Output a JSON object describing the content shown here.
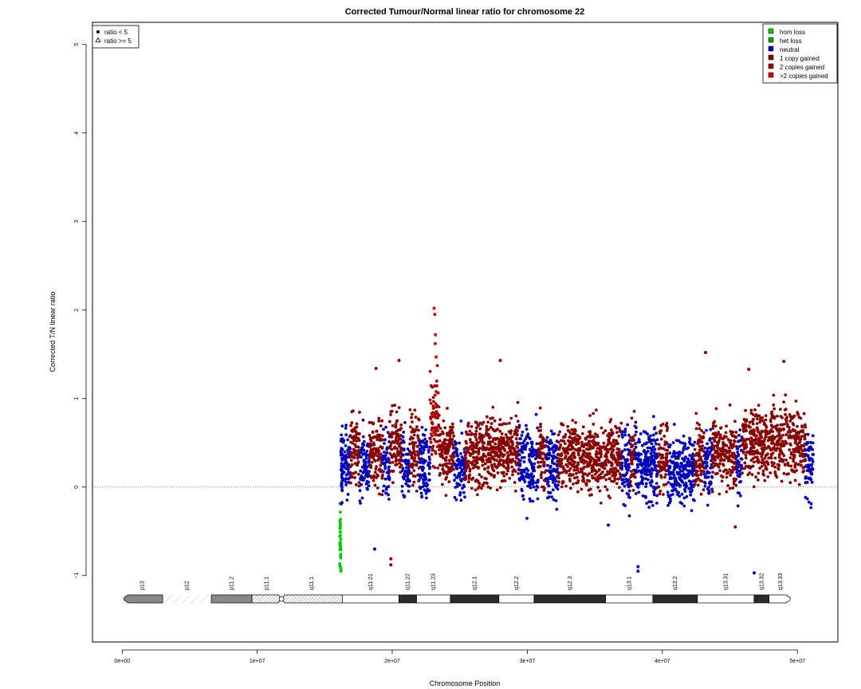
{
  "chart_data": {
    "type": "scatter",
    "title": "Corrected Tumour/Normal linear ratio for chromosome  22",
    "xlabel": "Chromosome Position",
    "ylabel": "Corrected T/N linear ratio",
    "xlim": [
      -2200000,
      53000000
    ],
    "ylim": [
      -1.75,
      5.25
    ],
    "x_ticks": [
      0,
      10000000,
      20000000,
      30000000,
      40000000,
      50000000
    ],
    "x_tick_labels": [
      "0e+00",
      "1e+07",
      "2e+07",
      "3e+07",
      "4e+07",
      "5e+07"
    ],
    "y_ticks": [
      -1,
      0,
      1,
      2,
      3,
      4,
      5
    ],
    "y_tick_labels": [
      "−1",
      "0",
      "1",
      "2",
      "3",
      "4",
      "5"
    ],
    "reference_line": 0,
    "shape_legend": {
      "placement": "top-left",
      "items": [
        {
          "label": "ratio < 5",
          "symbol": "circle"
        },
        {
          "label": "ratio >= 5",
          "symbol": "triangle"
        }
      ]
    },
    "legend": {
      "placement": "top-right",
      "items": [
        {
          "label": "hom loss",
          "color": "#00cc00"
        },
        {
          "label": "het loss",
          "color": "#00aa00"
        },
        {
          "label": "neutral",
          "color": "#0000bb"
        },
        {
          "label": "1 copy gained",
          "color": "#880000"
        },
        {
          "label": "2 copies gained",
          "color": "#aa0000"
        },
        {
          "label": ">2 copies gained",
          "color": "#dd0000"
        }
      ]
    },
    "segments": [
      {
        "start": 16100000,
        "end": 16200000,
        "state": "hom loss",
        "median": -0.6
      },
      {
        "start": 16200000,
        "end": 16300000,
        "state": "neutral",
        "median": 0.25
      },
      {
        "start": 16300000,
        "end": 16900000,
        "state": "neutral",
        "median": 0.25
      },
      {
        "start": 16900000,
        "end": 17600000,
        "state": "1 copy gained",
        "median": 0.45
      },
      {
        "start": 17600000,
        "end": 18300000,
        "state": "neutral",
        "median": 0.25
      },
      {
        "start": 18300000,
        "end": 19300000,
        "state": "1 copy gained",
        "median": 0.4
      },
      {
        "start": 19300000,
        "end": 19800000,
        "state": "neutral",
        "median": 0.25
      },
      {
        "start": 19800000,
        "end": 20700000,
        "state": "1 copy gained",
        "median": 0.45
      },
      {
        "start": 20700000,
        "end": 21300000,
        "state": "neutral",
        "median": 0.25
      },
      {
        "start": 21300000,
        "end": 22000000,
        "state": "1 copy gained",
        "median": 0.4
      },
      {
        "start": 22000000,
        "end": 22800000,
        "state": "neutral",
        "median": 0.25
      },
      {
        "start": 22800000,
        "end": 23500000,
        "state": "2 copies gained",
        "median": 0.6
      },
      {
        "start": 23500000,
        "end": 24600000,
        "state": "1 copy gained",
        "median": 0.4
      },
      {
        "start": 24600000,
        "end": 25400000,
        "state": "neutral",
        "median": 0.25
      },
      {
        "start": 25400000,
        "end": 29400000,
        "state": "1 copy gained",
        "median": 0.4
      },
      {
        "start": 29400000,
        "end": 30800000,
        "state": "neutral",
        "median": 0.25
      },
      {
        "start": 30800000,
        "end": 31400000,
        "state": "1 copy gained",
        "median": 0.35
      },
      {
        "start": 31400000,
        "end": 32300000,
        "state": "neutral",
        "median": 0.25
      },
      {
        "start": 32300000,
        "end": 37000000,
        "state": "1 copy gained",
        "median": 0.35
      },
      {
        "start": 37000000,
        "end": 37600000,
        "state": "neutral",
        "median": 0.25
      },
      {
        "start": 37600000,
        "end": 38000000,
        "state": "1 copy gained",
        "median": 0.35
      },
      {
        "start": 38000000,
        "end": 39700000,
        "state": "neutral",
        "median": 0.25
      },
      {
        "start": 39700000,
        "end": 40400000,
        "state": "1 copy gained",
        "median": 0.35
      },
      {
        "start": 40400000,
        "end": 42400000,
        "state": "neutral",
        "median": 0.2
      },
      {
        "start": 42400000,
        "end": 43100000,
        "state": "1 copy gained",
        "median": 0.35
      },
      {
        "start": 43100000,
        "end": 43700000,
        "state": "neutral",
        "median": 0.25
      },
      {
        "start": 43700000,
        "end": 45500000,
        "state": "1 copy gained",
        "median": 0.4
      },
      {
        "start": 45500000,
        "end": 45900000,
        "state": "neutral",
        "median": 0.25
      },
      {
        "start": 45900000,
        "end": 50600000,
        "state": "1 copy gained",
        "median": 0.5
      },
      {
        "start": 50600000,
        "end": 51200000,
        "state": "neutral",
        "median": 0.25
      }
    ],
    "outliers": [
      {
        "x": 23100000,
        "y": 2.02,
        "state": ">2 copies gained"
      },
      {
        "x": 23150000,
        "y": 1.95,
        "state": ">2 copies gained"
      },
      {
        "x": 23200000,
        "y": 1.72,
        "state": ">2 copies gained"
      },
      {
        "x": 23180000,
        "y": 1.62,
        "state": ">2 copies gained"
      },
      {
        "x": 23250000,
        "y": 1.47,
        "state": ">2 copies gained"
      },
      {
        "x": 43200000,
        "y": 1.52,
        "state": "1 copy gained"
      },
      {
        "x": 28000000,
        "y": 1.43,
        "state": "1 copy gained"
      },
      {
        "x": 49000000,
        "y": 1.42,
        "state": "1 copy gained"
      },
      {
        "x": 18800000,
        "y": 1.34,
        "state": "1 copy gained"
      },
      {
        "x": 20500000,
        "y": 1.43,
        "state": "1 copy gained"
      },
      {
        "x": 46400000,
        "y": 1.33,
        "state": "1 copy gained"
      },
      {
        "x": 19900000,
        "y": -0.88,
        "state": "1 copy gained"
      },
      {
        "x": 19900000,
        "y": -0.81,
        "state": "1 copy gained"
      },
      {
        "x": 38200000,
        "y": -0.9,
        "state": "neutral"
      },
      {
        "x": 38200000,
        "y": -0.95,
        "state": "neutral"
      },
      {
        "x": 46800000,
        "y": -0.97,
        "state": "neutral"
      },
      {
        "x": 18700000,
        "y": -0.7,
        "state": "neutral"
      },
      {
        "x": 36000000,
        "y": -0.43,
        "state": "neutral"
      },
      {
        "x": 45400000,
        "y": -0.45,
        "state": "1 copy gained"
      },
      {
        "x": 16180000,
        "y": -0.92,
        "state": "hom loss"
      },
      {
        "x": 16200000,
        "y": -0.95,
        "state": "hom loss"
      }
    ],
    "ideogram": {
      "bands": [
        {
          "name": "p13",
          "start": 0,
          "end": 3000000,
          "stain": "acen-like-gray"
        },
        {
          "name": "p12",
          "start": 3000000,
          "end": 6600000,
          "stain": "stalk"
        },
        {
          "name": "p11.2",
          "start": 6600000,
          "end": 9600000,
          "stain": "gpos"
        },
        {
          "name": "p11.1",
          "start": 9600000,
          "end": 11800000,
          "stain": "gvar"
        },
        {
          "name": "q11.1",
          "start": 11800000,
          "end": 16300000,
          "stain": "gvar"
        },
        {
          "name": "q11.21",
          "start": 16300000,
          "end": 20500000,
          "stain": "gneg"
        },
        {
          "name": "q11.22",
          "start": 20500000,
          "end": 21800000,
          "stain": "gpos100"
        },
        {
          "name": "q11.23",
          "start": 21800000,
          "end": 24300000,
          "stain": "gneg"
        },
        {
          "name": "q12.1",
          "start": 24300000,
          "end": 27900000,
          "stain": "gpos100"
        },
        {
          "name": "q12.2",
          "start": 27900000,
          "end": 30500000,
          "stain": "gneg"
        },
        {
          "name": "q12.3",
          "start": 30500000,
          "end": 35800000,
          "stain": "gpos100"
        },
        {
          "name": "q13.1",
          "start": 35800000,
          "end": 39300000,
          "stain": "gneg"
        },
        {
          "name": "q13.2",
          "start": 39300000,
          "end": 42600000,
          "stain": "gpos100"
        },
        {
          "name": "q13.31",
          "start": 42600000,
          "end": 46800000,
          "stain": "gneg"
        },
        {
          "name": "q13.32",
          "start": 46800000,
          "end": 47900000,
          "stain": "gpos100"
        },
        {
          "name": "q13.33",
          "start": 47900000,
          "end": 49600000,
          "stain": "gneg"
        }
      ],
      "centromere": 11800000
    }
  }
}
